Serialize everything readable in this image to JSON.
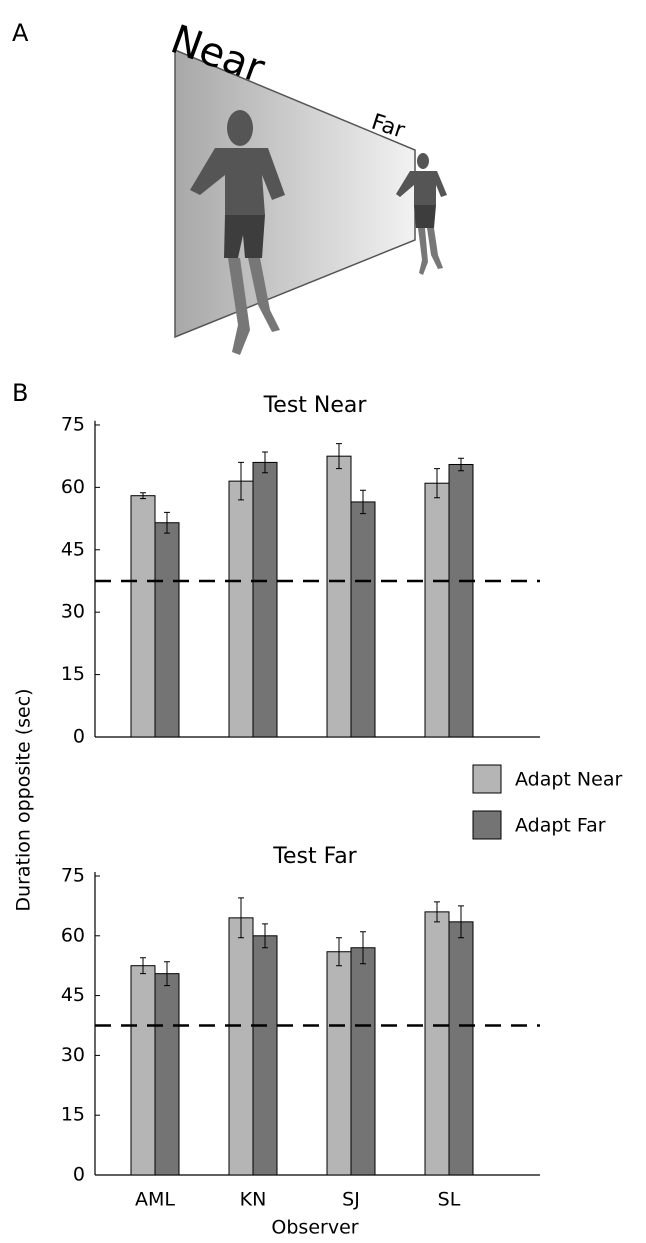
{
  "panel_a": {
    "label": "A",
    "near_label": "Near",
    "far_label": "Far"
  },
  "panel_b": {
    "label": "B"
  },
  "chart_data": [
    {
      "type": "bar",
      "title": "Test Near",
      "ylabel": "Duration opposite (sec)",
      "categories": [
        null,
        null,
        null,
        null
      ],
      "series": [
        {
          "name": "Adapt Near",
          "color": "#b5b5b5",
          "values": [
            58,
            61.5,
            67.5,
            61
          ],
          "errors": [
            0.7,
            4.5,
            3,
            3.5
          ]
        },
        {
          "name": "Adapt Far",
          "color": "#747474",
          "values": [
            51.5,
            66,
            56.5,
            65.5
          ],
          "errors": [
            2.5,
            2.5,
            2.8,
            1.5
          ]
        }
      ],
      "reference_line": 37.5,
      "ylim": [
        0,
        76
      ],
      "yticks": [
        0,
        15,
        30,
        45,
        60,
        75
      ]
    },
    {
      "type": "bar",
      "title": "Test Far",
      "xlabel": "Observer",
      "categories": [
        "AML",
        "KN",
        "SJ",
        "SL"
      ],
      "series": [
        {
          "color": "#b5b5b5",
          "values": [
            52.5,
            64.5,
            56,
            66
          ],
          "errors": [
            2,
            5,
            3.5,
            2.5
          ]
        },
        {
          "color": "#747474",
          "values": [
            50.5,
            60,
            57,
            63.5
          ],
          "errors": [
            3,
            3,
            4,
            4
          ]
        }
      ],
      "reference_line": 37.5,
      "ylim": [
        0,
        76
      ],
      "yticks": [
        0,
        15,
        30,
        45,
        60,
        75
      ]
    }
  ]
}
